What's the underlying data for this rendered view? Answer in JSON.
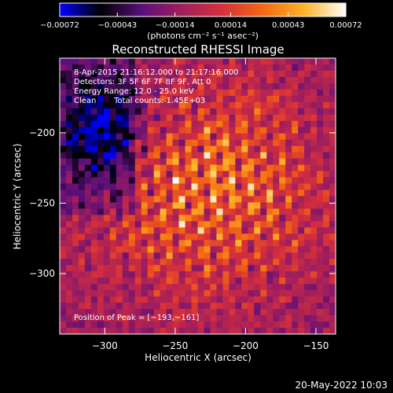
{
  "chart_data": {
    "type": "heatmap",
    "title": "Reconstructed RHESSI Image",
    "xlabel": "Heliocentric X (arcsec)",
    "ylabel": "Heliocentric Y (arcsec)",
    "xlim": [
      -332,
      -136
    ],
    "ylim": [
      -343,
      -147
    ],
    "xticks": [
      -300,
      -250,
      -200,
      -150
    ],
    "xtick_labels": [
      "−300",
      "−250",
      "−200",
      "−150"
    ],
    "yticks": [
      -300,
      -250,
      -200
    ],
    "ytick_labels": [
      "−300",
      "−250",
      "−200"
    ],
    "colorbar": {
      "range": [
        -0.00072,
        0.00072
      ],
      "ticks": [
        -0.00072,
        -0.00043,
        -0.00014,
        0.00014,
        0.00043,
        0.00072
      ],
      "tick_labels": [
        "−0.00072",
        "−0.00043",
        "−0.00014",
        "0.00014",
        "0.00043",
        "0.00072"
      ],
      "unit_label": "(photons cm⁻² s⁻¹ asec⁻²)",
      "stops": [
        "#0000ff",
        "#000000",
        "#5a0f7a",
        "#a21f5c",
        "#d8303a",
        "#f56a10",
        "#fcb52a",
        "#ffffff"
      ]
    },
    "annotations": {
      "time_range": "8-Apr-2015 21:16:12.000 to 21:17:16.000",
      "detectors": "Detectors: 3F 5F 6F 7F 8F 9F, Att 0",
      "energy_range": "Energy Range: 12.0 - 25.0 keV",
      "clean_label": "Clean",
      "total_counts": "Total counts: 1.45E+03",
      "peak_position": "Position of Peak = [−193,−161]"
    },
    "peak": [
      -193,
      -161
    ],
    "timestamp": "20-May-2022 10:03"
  }
}
